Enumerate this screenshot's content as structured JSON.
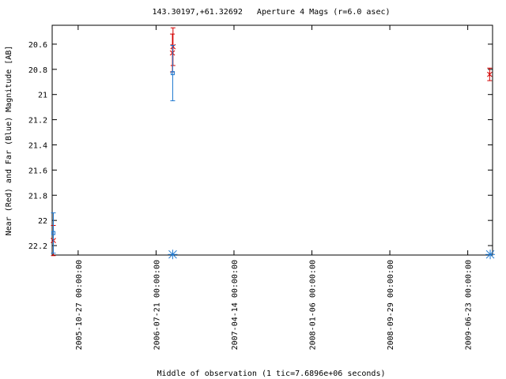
{
  "chart_data": {
    "type": "errorbar",
    "title": "143.30197,+61.32692   Aperture 4 Mags (r=6.0 asec)",
    "x_label": "Middle of observation (1 tic=7.6896e+06 seconds)",
    "y_label": "Near (Red) and Far (Blue) Magnitude [AB]",
    "xlim": [
      "2005-07-30",
      "2009-09-16"
    ],
    "xticks": [
      {
        "value": "2005-10-27",
        "label": "2005-10-27 00:00:00"
      },
      {
        "value": "2006-07-21",
        "label": "2006-07-21 00:00:00"
      },
      {
        "value": "2007-04-14",
        "label": "2007-04-14 00:00:00"
      },
      {
        "value": "2008-01-06",
        "label": "2008-01-06 00:00:00"
      },
      {
        "value": "2008-09-29",
        "label": "2008-09-29 00:00:00"
      },
      {
        "value": "2009-06-23",
        "label": "2009-06-23 00:00:00"
      }
    ],
    "ylim": [
      22.275,
      20.45
    ],
    "yticks": [
      20.6,
      20.8,
      21,
      21.2,
      21.4,
      21.6,
      21.8,
      22,
      22.2
    ],
    "series": [
      {
        "color": "#d40000",
        "marker": "cross",
        "x": [
          "2005-08-03",
          "2006-09-15",
          "2006-09-17",
          "2009-09-06"
        ],
        "values": [
          22.16,
          20.67,
          20.62,
          20.84
        ],
        "errors": [
          0.12,
          0.15,
          0.15,
          0.05
        ]
      },
      {
        "color": "#1e78d0",
        "marker": "square",
        "x": [
          "2005-08-03",
          "2006-09-16"
        ],
        "values": [
          22.1,
          20.83
        ],
        "errors": [
          0.16,
          0.22
        ]
      },
      {
        "color": "#1e78d0",
        "marker": "star",
        "x": [
          "2006-09-16",
          "2009-09-08"
        ],
        "values": [
          22.27,
          22.27
        ]
      }
    ]
  }
}
